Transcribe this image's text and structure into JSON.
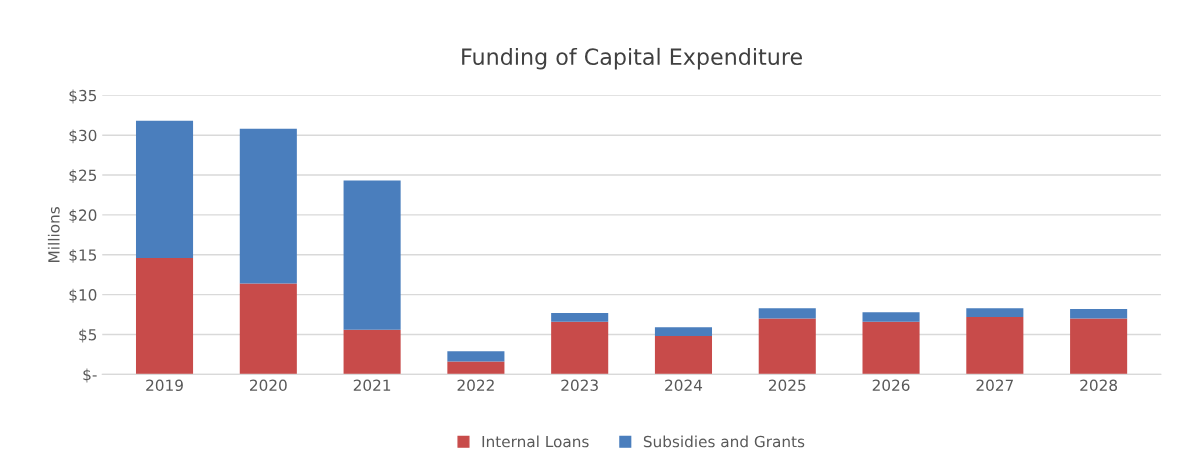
{
  "chart_data": {
    "type": "bar",
    "title": "Funding of Capital Expenditure",
    "ylabel": "Millions",
    "categories": [
      "2019",
      "2020",
      "2021",
      "2022",
      "2023",
      "2024",
      "2025",
      "2026",
      "2027",
      "2028"
    ],
    "stacked": true,
    "series": [
      {
        "name": "Internal Loans",
        "color": "#c84b4a",
        "values": [
          14.6,
          11.4,
          5.6,
          1.6,
          6.6,
          4.8,
          7.0,
          6.6,
          7.2,
          7.0
        ]
      },
      {
        "name": "Subsidies and Grants",
        "color": "#4a7ebd",
        "values": [
          17.2,
          19.4,
          18.7,
          1.3,
          1.1,
          1.1,
          1.3,
          1.2,
          1.1,
          1.2
        ]
      }
    ],
    "ylim": [
      0,
      35
    ],
    "yticks": [
      {
        "value": 0,
        "label": "$-"
      },
      {
        "value": 5,
        "label": "$5"
      },
      {
        "value": 10,
        "label": "$10"
      },
      {
        "value": 15,
        "label": "$15"
      },
      {
        "value": 20,
        "label": "$20"
      },
      {
        "value": 25,
        "label": "$25"
      },
      {
        "value": 30,
        "label": "$30"
      },
      {
        "value": 35,
        "label": "$35"
      }
    ],
    "grid": "y",
    "legend": "bottom"
  }
}
